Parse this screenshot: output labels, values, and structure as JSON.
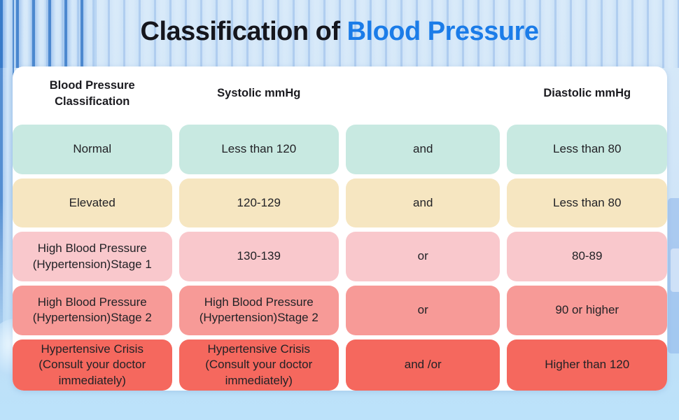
{
  "title": {
    "prefix": "Classification of",
    "highlight": "Blood Pressure"
  },
  "colors": {
    "title_dark": "#15161d",
    "title_blue": "#1b7ce8",
    "card_bg": "#ffffff",
    "background_blue": "#cfe4f7",
    "stripe_blue": "#3478c8"
  },
  "table": {
    "headers": {
      "classification": "Blood Pressure\nClassification",
      "systolic": "Systolic mmHg",
      "connector": "",
      "diastolic": "Diastolic mmHg"
    },
    "rows": [
      {
        "classification": "Normal",
        "systolic": "Less than 120",
        "connector": "and",
        "diastolic": "Less than 80",
        "color": "#c8e9e1"
      },
      {
        "classification": "Elevated",
        "systolic": "120-129",
        "connector": "and",
        "diastolic": "Less than 80",
        "color": "#f6e6c1"
      },
      {
        "classification": "High Blood Pressure\n(Hypertension)Stage 1",
        "systolic": "130-139",
        "connector": "or",
        "diastolic": "80-89",
        "color": "#f9c8cc"
      },
      {
        "classification": "High Blood Pressure\n(Hypertension)Stage 2",
        "systolic": "High Blood Pressure\n(Hypertension)Stage 2",
        "connector": "or",
        "diastolic": "90 or higher",
        "color": "#f79a97"
      },
      {
        "classification": "Hypertensive Crisis\n(Consult your doctor\nimmediately)",
        "systolic": "Hypertensive Crisis\n(Consult your doctor\nimmediately)",
        "connector": "and /or",
        "diastolic": "Higher than 120",
        "color": "#f5685e"
      }
    ]
  }
}
